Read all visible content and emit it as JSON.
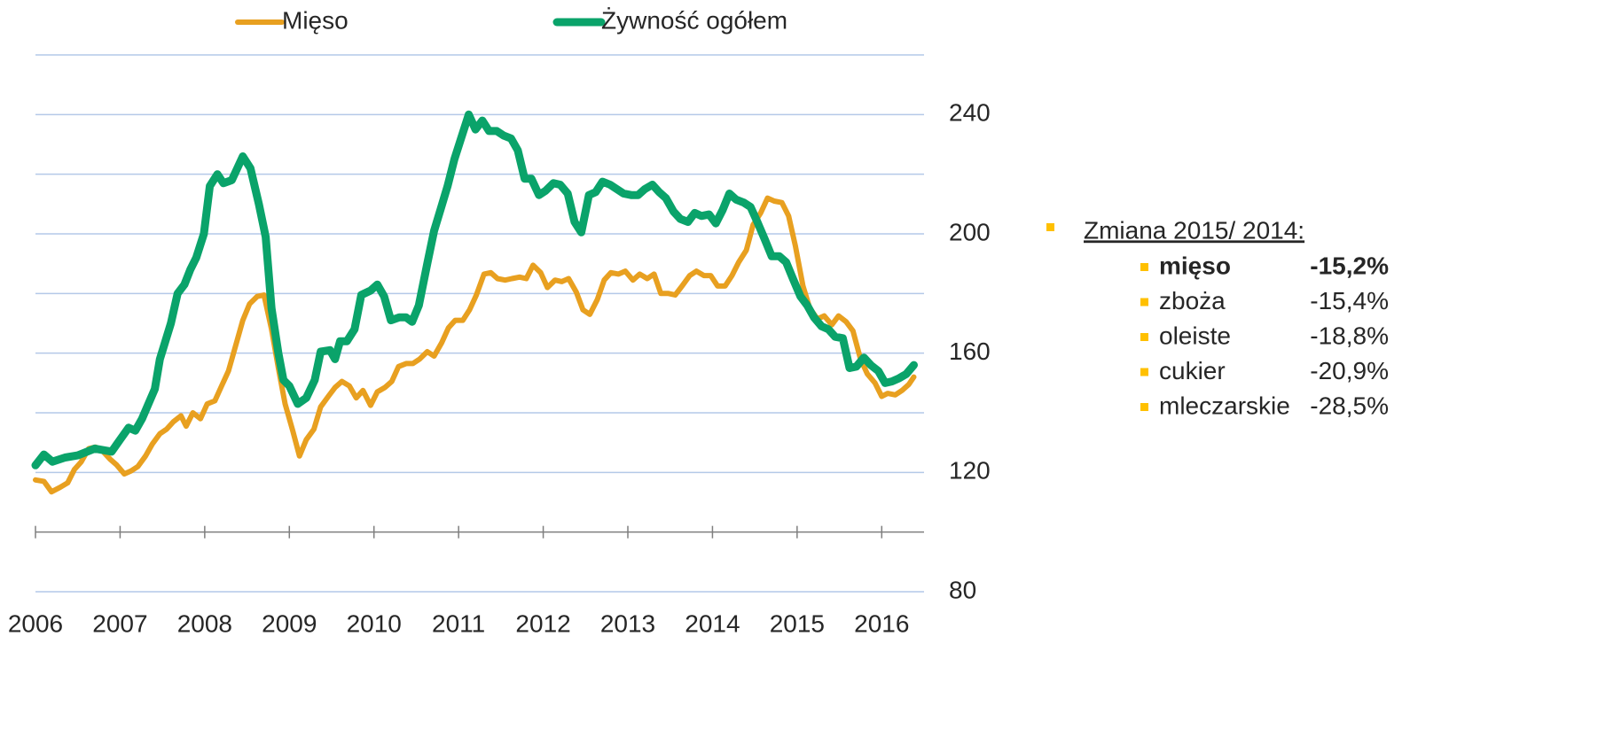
{
  "chart_data": {
    "type": "line",
    "xlim": [
      2006,
      2016.5
    ],
    "xticks": [
      2006,
      2007,
      2008,
      2009,
      2010,
      2011,
      2012,
      2013,
      2014,
      2015,
      2016
    ],
    "ylim": [
      80,
      260
    ],
    "yticks": [
      80,
      120,
      160,
      200,
      240
    ],
    "minor_yticks": [
      100,
      140,
      180,
      220,
      260
    ],
    "xaxis_at": 100,
    "grid": true,
    "legend": "top",
    "series": [
      {
        "name": "Mięso",
        "color": "#e8a020",
        "x": [
          2006.0,
          2006.1,
          2006.19,
          2006.29,
          2006.38,
          2006.46,
          2006.54,
          2006.63,
          2006.71,
          2006.8,
          2006.88,
          2006.96,
          2007.05,
          2007.13,
          2007.21,
          2007.3,
          2007.38,
          2007.47,
          2007.55,
          2007.63,
          2007.72,
          2007.78,
          2007.86,
          2007.95,
          2008.03,
          2008.12,
          2008.2,
          2008.28,
          2008.37,
          2008.45,
          2008.53,
          2008.62,
          2008.7,
          2008.79,
          2008.87,
          2008.95,
          2009.04,
          2009.12,
          2009.2,
          2009.29,
          2009.37,
          2009.46,
          2009.54,
          2009.62,
          2009.71,
          2009.79,
          2009.87,
          2009.96,
          2010.04,
          2010.13,
          2010.21,
          2010.29,
          2010.38,
          2010.46,
          2010.54,
          2010.63,
          2010.71,
          2010.8,
          2010.88,
          2010.96,
          2011.05,
          2011.13,
          2011.21,
          2011.3,
          2011.38,
          2011.46,
          2011.55,
          2011.63,
          2011.72,
          2011.8,
          2011.88,
          2011.97,
          2012.05,
          2012.14,
          2012.22,
          2012.3,
          2012.39,
          2012.47,
          2012.55,
          2012.64,
          2012.72,
          2012.8,
          2012.89,
          2012.97,
          2013.06,
          2013.14,
          2013.23,
          2013.31,
          2013.39,
          2013.48,
          2013.56,
          2013.64,
          2013.73,
          2013.81,
          2013.9,
          2013.98,
          2014.06,
          2014.15,
          2014.23,
          2014.31,
          2014.4,
          2014.48,
          2014.57,
          2014.65,
          2014.73,
          2014.82,
          2014.9,
          2014.98,
          2015.07,
          2015.15,
          2015.24,
          2015.32,
          2015.41,
          2015.49,
          2015.58,
          2015.66,
          2015.75,
          2015.83,
          2015.92,
          2016.0,
          2016.07,
          2016.16,
          2016.24,
          2016.32,
          2016.38
        ],
        "values": [
          117.5,
          117,
          113.5,
          115,
          116.5,
          121,
          123.5,
          128,
          128.5,
          127,
          124.5,
          122.5,
          119.5,
          120.5,
          122,
          125.5,
          129.5,
          133,
          134.5,
          137,
          139,
          135.5,
          140,
          138,
          143,
          144,
          149,
          154,
          163,
          171,
          176.5,
          179,
          179.5,
          168,
          155,
          143,
          134,
          125.5,
          131,
          134.5,
          142,
          145.5,
          148.5,
          150.5,
          149,
          145,
          147.5,
          142.5,
          147,
          148.5,
          150.5,
          155.5,
          156.5,
          156.5,
          158,
          160.5,
          159,
          163.5,
          168.5,
          171,
          171,
          174.5,
          179.5,
          186.5,
          187,
          185,
          184.5,
          185,
          185.5,
          185,
          189.5,
          187,
          182,
          184.5,
          184,
          185,
          180.5,
          174.5,
          173,
          178,
          184.5,
          187,
          186.5,
          187.5,
          184.5,
          186.5,
          185,
          186.5,
          180,
          180,
          179.5,
          182.5,
          186,
          187.5,
          186,
          186,
          182.5,
          182.5,
          186,
          190.5,
          194.5,
          203,
          207,
          212,
          211,
          210.5,
          206,
          196,
          182.5,
          175,
          171.5,
          172.5,
          169.5,
          172.5,
          170.5,
          167.5,
          158,
          153,
          150,
          145.5,
          146.5,
          146,
          147.5,
          149.5,
          152
        ]
      },
      {
        "name": "Żywność ogółem",
        "color": "#0aa36a",
        "x": [
          2006.0,
          2006.1,
          2006.2,
          2006.35,
          2006.5,
          2006.7,
          2006.9,
          2007.0,
          2007.1,
          2007.18,
          2007.26,
          2007.41,
          2007.47,
          2007.6,
          2007.68,
          2007.76,
          2007.83,
          2007.9,
          2007.99,
          2008.06,
          2008.15,
          2008.22,
          2008.32,
          2008.45,
          2008.54,
          2008.64,
          2008.72,
          2008.79,
          2008.87,
          2008.93,
          2009.0,
          2009.1,
          2009.2,
          2009.3,
          2009.37,
          2009.48,
          2009.54,
          2009.6,
          2009.68,
          2009.77,
          2009.85,
          2009.96,
          2010.04,
          2010.12,
          2010.2,
          2010.3,
          2010.38,
          2010.45,
          2010.53,
          2010.63,
          2010.71,
          2010.79,
          2010.87,
          2010.95,
          2011.04,
          2011.12,
          2011.2,
          2011.28,
          2011.36,
          2011.45,
          2011.53,
          2011.62,
          2011.7,
          2011.78,
          2011.86,
          2011.95,
          2012.03,
          2012.12,
          2012.2,
          2012.29,
          2012.37,
          2012.45,
          2012.54,
          2012.62,
          2012.7,
          2012.79,
          2012.87,
          2012.95,
          2013.04,
          2013.12,
          2013.2,
          2013.29,
          2013.37,
          2013.45,
          2013.54,
          2013.62,
          2013.71,
          2013.79,
          2013.87,
          2013.96,
          2014.04,
          2014.12,
          2014.2,
          2014.28,
          2014.37,
          2014.45,
          2014.53,
          2014.62,
          2014.7,
          2014.79,
          2014.87,
          2014.95,
          2015.04,
          2015.12,
          2015.2,
          2015.29,
          2015.37,
          2015.45,
          2015.54,
          2015.62,
          2015.7,
          2015.79,
          2015.87,
          2015.96,
          2016.04,
          2016.12,
          2016.2,
          2016.29,
          2016.38
        ],
        "values": [
          122.4,
          126,
          123.6,
          125,
          125.7,
          128,
          127,
          131,
          135,
          134,
          138,
          148,
          158,
          170,
          180,
          183,
          188,
          192,
          200,
          216,
          220,
          217,
          218,
          226,
          222,
          210,
          199,
          175,
          160,
          151,
          149,
          143,
          145,
          151,
          160.5,
          161,
          158,
          164,
          164,
          168,
          179.5,
          181,
          183,
          179,
          171,
          172,
          172,
          170.5,
          176,
          190,
          201,
          208.5,
          216,
          225,
          233,
          240,
          235,
          238,
          234.5,
          234.5,
          233,
          232,
          228,
          218.5,
          218.5,
          213,
          214.5,
          217,
          216.5,
          213.5,
          204,
          200.5,
          213,
          214,
          217.5,
          216.5,
          215,
          213.5,
          213,
          213,
          215,
          216.5,
          214,
          212,
          207.5,
          205,
          204,
          207,
          206,
          206.5,
          203.5,
          208,
          213.5,
          211.5,
          210.5,
          209,
          204,
          198,
          192.5,
          192.5,
          190.5,
          185,
          179,
          176,
          172,
          169,
          168,
          165.5,
          165,
          155,
          155.5,
          158.5,
          156,
          154,
          150,
          150.5,
          151.5,
          153,
          156
        ]
      }
    ]
  },
  "changes": {
    "title": "Zmiana 2015/ 2014:",
    "categories": [
      "mięso",
      "zboża",
      "oleiste",
      "cukier",
      "mleczarskie"
    ],
    "values": [
      -15.2,
      -15.4,
      -18.8,
      -20.9,
      -28.5
    ],
    "value_labels": [
      "-15,2%",
      "-15,4%",
      "-18,8%",
      "-20,9%",
      "-28,5%"
    ],
    "bold": [
      true,
      false,
      false,
      false,
      false
    ],
    "bullet_color": "#ffc000"
  }
}
